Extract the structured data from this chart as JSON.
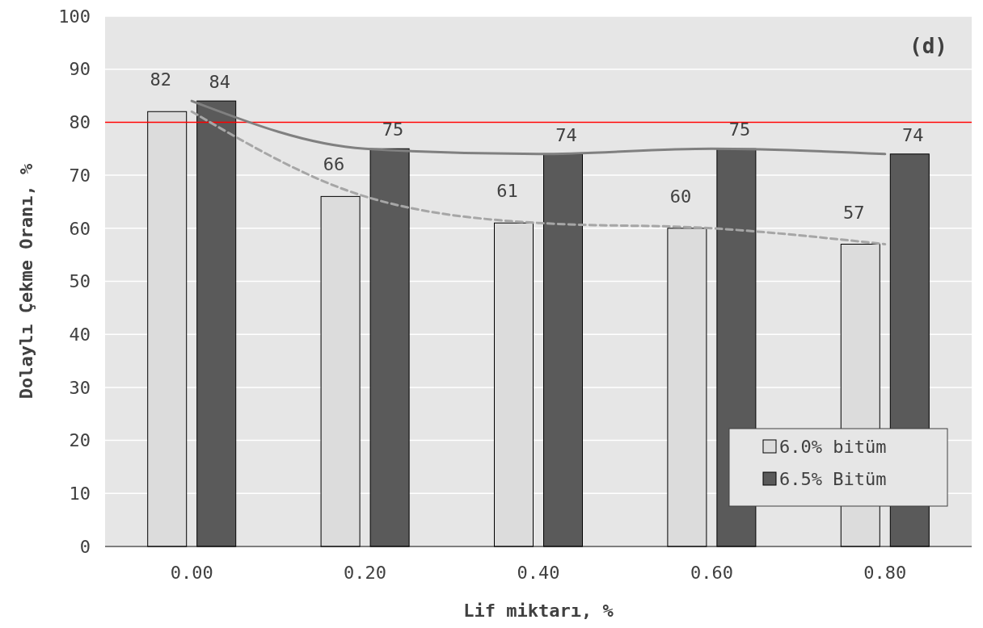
{
  "chart_data": {
    "type": "bar",
    "xlabel": "Lif miktarı, %",
    "ylabel": "Dolaylı Çekme Oranı, %",
    "categories": [
      "0.00",
      "0.20",
      "0.40",
      "0.60",
      "0.80"
    ],
    "series": [
      {
        "name": "6.0% bitüm",
        "color": "#dcdcdc",
        "values": [
          82,
          66,
          61,
          60,
          57
        ]
      },
      {
        "name": "6.5% Bitüm",
        "color": "#5a5a5a",
        "values": [
          84,
          75,
          74,
          75,
          74
        ]
      },
      {
        "type": "line",
        "color": "#a6a6a6",
        "line_style": "dashed",
        "values": [
          82,
          66,
          61,
          60,
          57
        ],
        "value_labels": [
          null,
          null,
          null,
          null,
          null
        ]
      },
      {
        "type": "line",
        "color": "#808080",
        "line_style": "solid",
        "values": [
          84,
          75,
          74,
          75,
          74
        ],
        "value_labels": [
          null,
          null,
          null,
          null,
          null
        ]
      }
    ],
    "ylim": [
      0,
      100
    ],
    "yticks": [
      0,
      10,
      20,
      30,
      40,
      50,
      60,
      70,
      80,
      90,
      100
    ],
    "grid": "y",
    "legend": "bottom right",
    "data_labels": true,
    "ref_lines": [
      {
        "axis": "y",
        "value": 80,
        "color": "#ff0000"
      }
    ],
    "annotations": [
      "(d)"
    ]
  }
}
